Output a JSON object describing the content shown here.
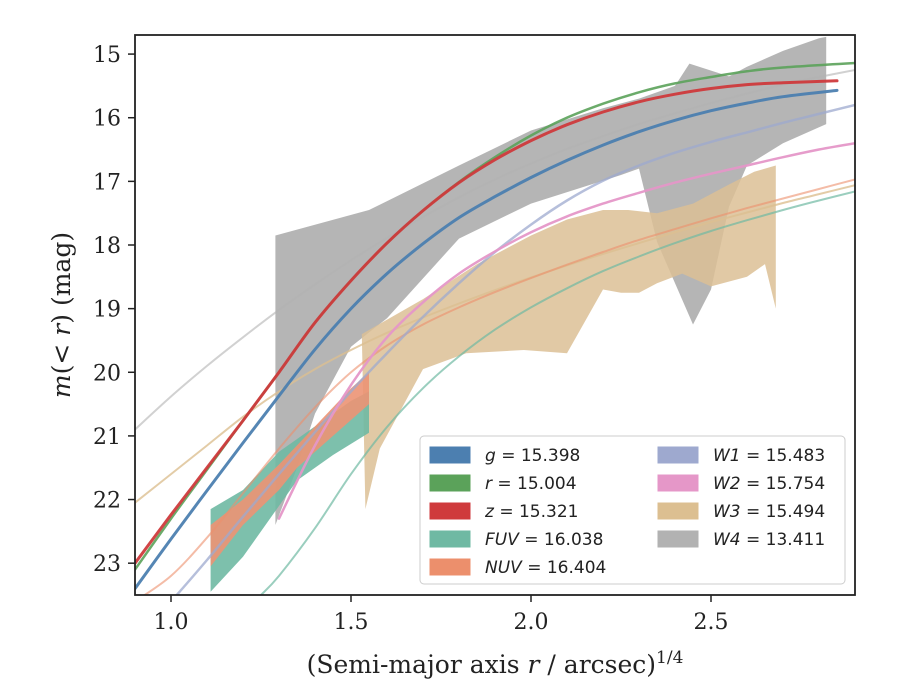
{
  "chart_data": {
    "type": "line",
    "xlabel": "(Semi-major axis r / arcsec)^1/4",
    "xlabel_main": "(Semi-major axis ",
    "xlabel_var": "r",
    "xlabel_unit": " / arcsec)",
    "xlabel_sup": "1/4",
    "ylabel": "m(<r) (mag)",
    "ylabel_prefix": "m",
    "ylabel_mid": "(< ",
    "ylabel_var": "r",
    "ylabel_suffix": ") (mag)",
    "xlim": [
      0.9,
      2.9
    ],
    "ylim": [
      23.5,
      14.7
    ],
    "y_inverted": true,
    "grid": false,
    "legend_position": "lower-right",
    "x_ticks": [
      {
        "value": 1.0,
        "label": "1.0"
      },
      {
        "value": 1.5,
        "label": "1.5"
      },
      {
        "value": 2.0,
        "label": "2.0"
      },
      {
        "value": 2.5,
        "label": "2.5"
      }
    ],
    "y_ticks": [
      {
        "value": 15,
        "label": "15"
      },
      {
        "value": 16,
        "label": "16"
      },
      {
        "value": 17,
        "label": "17"
      },
      {
        "value": 18,
        "label": "18"
      },
      {
        "value": 19,
        "label": "19"
      },
      {
        "value": 20,
        "label": "20"
      },
      {
        "value": 21,
        "label": "21"
      },
      {
        "value": 22,
        "label": "22"
      },
      {
        "value": 23,
        "label": "23"
      }
    ],
    "legend": [
      {
        "band": "g",
        "value": "15.398",
        "color": "#4c7fb0"
      },
      {
        "band": "r",
        "value": "15.004",
        "color": "#5ba25a"
      },
      {
        "band": "z",
        "value": "15.321",
        "color": "#cf3a3c"
      },
      {
        "band": "FUV",
        "value": "16.038",
        "color": "#6fb9a3"
      },
      {
        "band": "NUV",
        "value": "16.404",
        "color": "#ec8f6c"
      },
      {
        "band": "W1",
        "value": "15.483",
        "color": "#9ea9cf"
      },
      {
        "band": "W2",
        "value": "15.754",
        "color": "#e597c8"
      },
      {
        "band": "W3",
        "value": "15.494",
        "color": "#dcbf91"
      },
      {
        "band": "W4",
        "value": "13.411",
        "color": "#b2b2b2"
      }
    ],
    "series": [
      {
        "band": "g",
        "color": "#4c7fb0",
        "width": 3,
        "opacity": 0.95,
        "x": [
          0.9,
          1.0,
          1.1,
          1.2,
          1.3,
          1.4,
          1.5,
          1.6,
          1.7,
          1.8,
          1.9,
          2.0,
          2.1,
          2.2,
          2.3,
          2.4,
          2.5,
          2.6,
          2.7,
          2.85
        ],
        "y": [
          23.4,
          22.62,
          21.86,
          21.11,
          20.37,
          19.64,
          19.0,
          18.45,
          17.98,
          17.57,
          17.24,
          16.94,
          16.67,
          16.43,
          16.22,
          16.04,
          15.89,
          15.77,
          15.67,
          15.57
        ]
      },
      {
        "band": "r",
        "color": "#5ba25a",
        "width": 2.5,
        "opacity": 0.9,
        "x": [
          0.9,
          1.0,
          1.1,
          1.2,
          1.3,
          1.4,
          1.5,
          1.6,
          1.7,
          1.8,
          1.9,
          2.0,
          2.1,
          2.2,
          2.3,
          2.4,
          2.5,
          2.6,
          2.7,
          2.9
        ],
        "y": [
          23.1,
          22.3,
          21.53,
          20.76,
          20.0,
          19.22,
          18.56,
          17.97,
          17.46,
          17.01,
          16.62,
          16.28,
          16.0,
          15.78,
          15.6,
          15.46,
          15.36,
          15.27,
          15.21,
          15.14
        ]
      },
      {
        "band": "z",
        "color": "#cf3a3c",
        "width": 3,
        "opacity": 0.95,
        "x": [
          0.9,
          1.0,
          1.1,
          1.2,
          1.3,
          1.4,
          1.5,
          1.6,
          1.7,
          1.8,
          1.9,
          2.0,
          2.1,
          2.2,
          2.3,
          2.4,
          2.5,
          2.6,
          2.7,
          2.85
        ],
        "y": [
          23.0,
          22.24,
          21.5,
          20.76,
          20.0,
          19.22,
          18.56,
          17.97,
          17.46,
          17.02,
          16.66,
          16.36,
          16.11,
          15.91,
          15.75,
          15.63,
          15.54,
          15.48,
          15.45,
          15.42
        ]
      },
      {
        "band": "FUV",
        "color": "#6fb9a3",
        "width": 2,
        "opacity": 0.7,
        "x": [
          1.25,
          1.3,
          1.4,
          1.5,
          1.6,
          1.7,
          1.8,
          1.9,
          2.0,
          2.1,
          2.2,
          2.3,
          2.4,
          2.5,
          2.6,
          2.7,
          2.8,
          2.9
        ],
        "y": [
          23.5,
          23.2,
          22.45,
          21.6,
          20.86,
          20.25,
          19.75,
          19.33,
          18.98,
          18.68,
          18.41,
          18.18,
          17.97,
          17.78,
          17.61,
          17.45,
          17.3,
          17.16
        ]
      },
      {
        "band": "NUV",
        "color": "#ec8f6c",
        "width": 2,
        "opacity": 0.6,
        "x": [
          0.9,
          1.0,
          1.1,
          1.2,
          1.3,
          1.4,
          1.5,
          1.6,
          1.7,
          1.8,
          1.9,
          2.0,
          2.1,
          2.2,
          2.3,
          2.4,
          2.5,
          2.6,
          2.7,
          2.8,
          2.9
        ],
        "y": [
          23.6,
          23.2,
          22.6,
          21.9,
          21.2,
          20.55,
          20.0,
          19.58,
          19.25,
          18.98,
          18.74,
          18.52,
          18.31,
          18.11,
          17.92,
          17.75,
          17.58,
          17.42,
          17.27,
          17.12,
          16.97
        ]
      },
      {
        "band": "W1",
        "color": "#9ea9cf",
        "width": 2.5,
        "opacity": 0.75,
        "x": [
          0.9,
          1.0,
          1.1,
          1.2,
          1.3,
          1.4,
          1.5,
          1.6,
          1.7,
          1.8,
          1.9,
          2.0,
          2.1,
          2.2,
          2.3,
          2.4,
          2.5,
          2.6,
          2.7,
          2.8,
          2.9
        ],
        "y": [
          24.2,
          23.6,
          22.95,
          22.27,
          21.6,
          20.94,
          20.3,
          19.7,
          19.13,
          18.6,
          18.11,
          17.68,
          17.3,
          16.99,
          16.75,
          16.55,
          16.38,
          16.23,
          16.08,
          15.94,
          15.8
        ]
      },
      {
        "band": "W2",
        "color": "#e597c8",
        "width": 2.5,
        "opacity": 0.95,
        "x": [
          1.3,
          1.4,
          1.5,
          1.6,
          1.7,
          1.8,
          1.9,
          2.0,
          2.1,
          2.2,
          2.3,
          2.4,
          2.5,
          2.6,
          2.7,
          2.8,
          2.9
        ],
        "y": [
          22.3,
          21.15,
          20.2,
          19.45,
          18.9,
          18.45,
          18.1,
          17.8,
          17.55,
          17.35,
          17.18,
          17.02,
          16.88,
          16.75,
          16.62,
          16.5,
          16.4
        ]
      },
      {
        "band": "W3",
        "color": "#dcbf91",
        "width": 2,
        "opacity": 0.8,
        "x": [
          0.9,
          1.0,
          1.1,
          1.2,
          1.3,
          1.4,
          1.5,
          1.6,
          1.7,
          1.8,
          1.9,
          2.0,
          2.1,
          2.2,
          2.3,
          2.4,
          2.5,
          2.6,
          2.7,
          2.8,
          2.9
        ],
        "y": [
          22.05,
          21.6,
          21.15,
          20.7,
          20.3,
          19.95,
          19.65,
          19.38,
          19.14,
          18.92,
          18.71,
          18.51,
          18.32,
          18.14,
          17.97,
          17.8,
          17.64,
          17.49,
          17.34,
          17.2,
          17.06
        ]
      },
      {
        "band": "W4",
        "color": "#b2b2b2",
        "width": 2,
        "opacity": 0.6,
        "x": [
          0.9,
          1.0,
          1.1,
          1.2,
          1.3,
          1.4,
          1.5,
          1.6,
          1.7,
          1.8,
          1.9,
          2.0,
          2.1,
          2.2,
          2.3,
          2.4,
          2.5,
          2.6,
          2.7,
          2.8,
          2.9
        ],
        "y": [
          20.9,
          20.38,
          19.9,
          19.45,
          19.02,
          18.62,
          18.24,
          17.89,
          17.56,
          17.25,
          16.97,
          16.72,
          16.49,
          16.29,
          16.1,
          15.93,
          15.77,
          15.62,
          15.48,
          15.36,
          15.25
        ]
      }
    ],
    "bands": [
      {
        "band": "W4",
        "color": "#a8a8a8",
        "opacity": 0.85,
        "upper": [
          [
            1.29,
            17.85
          ],
          [
            1.55,
            17.45
          ],
          [
            1.8,
            16.75
          ],
          [
            2.0,
            16.2
          ],
          [
            2.2,
            15.85
          ],
          [
            2.3,
            15.7
          ],
          [
            2.4,
            15.5
          ],
          [
            2.44,
            15.15
          ],
          [
            2.55,
            15.35
          ],
          [
            2.6,
            15.2
          ],
          [
            2.7,
            14.95
          ],
          [
            2.8,
            14.75
          ],
          [
            2.82,
            14.73
          ]
        ],
        "lower": [
          [
            2.82,
            16.1
          ],
          [
            2.7,
            16.4
          ],
          [
            2.6,
            16.75
          ],
          [
            2.55,
            17.4
          ],
          [
            2.5,
            18.7
          ],
          [
            2.45,
            19.25
          ],
          [
            2.35,
            17.95
          ],
          [
            2.3,
            16.8
          ],
          [
            2.25,
            16.9
          ],
          [
            2.0,
            17.35
          ],
          [
            1.8,
            17.9
          ],
          [
            1.6,
            19.15
          ],
          [
            1.5,
            19.6
          ],
          [
            1.4,
            20.65
          ],
          [
            1.35,
            21.5
          ],
          [
            1.29,
            22.4
          ]
        ]
      },
      {
        "band": "W3",
        "color": "#dcc095",
        "opacity": 0.85,
        "upper": [
          [
            1.53,
            19.4
          ],
          [
            1.7,
            18.85
          ],
          [
            1.85,
            18.3
          ],
          [
            2.0,
            17.85
          ],
          [
            2.1,
            17.6
          ],
          [
            2.2,
            17.45
          ],
          [
            2.27,
            17.45
          ],
          [
            2.35,
            17.5
          ],
          [
            2.45,
            17.35
          ],
          [
            2.55,
            17.05
          ],
          [
            2.62,
            16.85
          ],
          [
            2.68,
            16.75
          ]
        ],
        "lower": [
          [
            2.68,
            19.0
          ],
          [
            2.65,
            18.3
          ],
          [
            2.6,
            18.5
          ],
          [
            2.5,
            18.65
          ],
          [
            2.42,
            18.45
          ],
          [
            2.35,
            18.6
          ],
          [
            2.3,
            18.75
          ],
          [
            2.25,
            18.75
          ],
          [
            2.2,
            18.7
          ],
          [
            2.1,
            19.7
          ],
          [
            1.98,
            19.65
          ],
          [
            1.82,
            19.7
          ],
          [
            1.7,
            19.95
          ],
          [
            1.58,
            21.2
          ],
          [
            1.54,
            22.15
          ]
        ]
      },
      {
        "band": "FUV",
        "color": "#6fb9a3",
        "opacity": 0.9,
        "upper": [
          [
            1.11,
            22.15
          ],
          [
            1.2,
            21.85
          ],
          [
            1.3,
            21.25
          ],
          [
            1.4,
            20.85
          ],
          [
            1.5,
            20.45
          ],
          [
            1.55,
            20.3
          ]
        ],
        "lower": [
          [
            1.55,
            20.95
          ],
          [
            1.45,
            21.3
          ],
          [
            1.35,
            21.7
          ],
          [
            1.3,
            22.1
          ],
          [
            1.2,
            22.9
          ],
          [
            1.11,
            23.45
          ]
        ]
      },
      {
        "band": "NUV",
        "color": "#ec9474",
        "opacity": 0.9,
        "upper": [
          [
            1.11,
            22.4
          ],
          [
            1.2,
            22.0
          ],
          [
            1.3,
            21.45
          ],
          [
            1.4,
            20.85
          ],
          [
            1.5,
            20.25
          ],
          [
            1.55,
            20.0
          ]
        ],
        "lower": [
          [
            1.55,
            20.5
          ],
          [
            1.45,
            21.0
          ],
          [
            1.35,
            21.5
          ],
          [
            1.3,
            21.85
          ],
          [
            1.2,
            22.4
          ],
          [
            1.11,
            23.05
          ]
        ]
      }
    ]
  }
}
